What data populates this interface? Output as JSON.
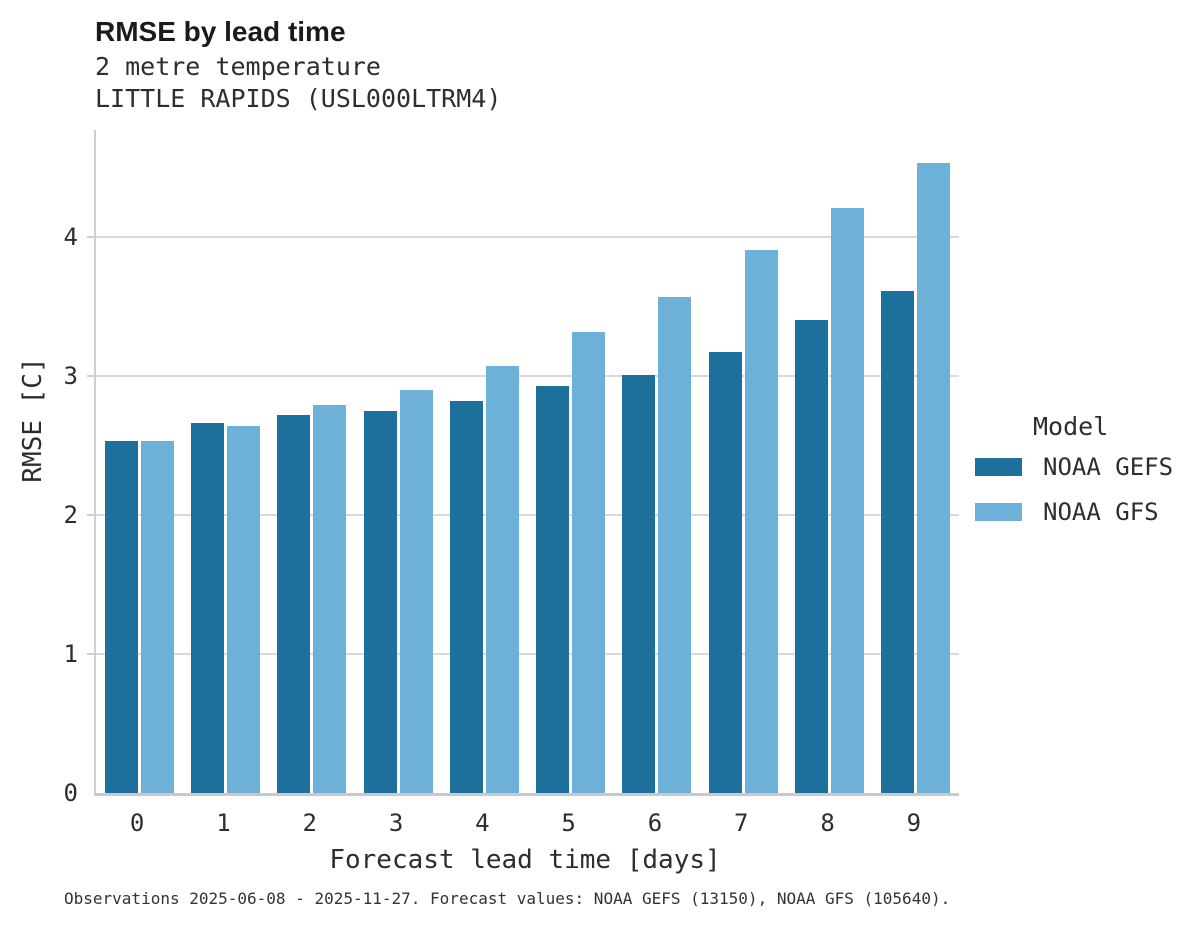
{
  "chart_data": {
    "type": "bar",
    "title": "RMSE by lead time",
    "subtitle_lines": [
      "2 metre temperature",
      "LITTLE RAPIDS (USL000LTRM4)"
    ],
    "xlabel": "Forecast lead time [days]",
    "ylabel": "RMSE [C]",
    "categories": [
      "0",
      "1",
      "2",
      "3",
      "4",
      "5",
      "6",
      "7",
      "8",
      "9"
    ],
    "series": [
      {
        "name": "NOAA GEFS",
        "color": "#1d6f9c",
        "values": [
          2.53,
          2.66,
          2.72,
          2.75,
          2.82,
          2.93,
          3.01,
          3.17,
          3.4,
          3.61
        ]
      },
      {
        "name": "NOAA GFS",
        "color": "#6db1d8",
        "values": [
          2.53,
          2.64,
          2.79,
          2.9,
          3.07,
          3.32,
          3.57,
          3.91,
          4.21,
          4.53
        ]
      }
    ],
    "ylim": [
      0,
      4.77
    ],
    "yticks": [
      0,
      1,
      2,
      3,
      4
    ],
    "grid": "horizontal",
    "legend_title": "Model",
    "legend_position": "right",
    "axis_color": "#cfcfcf",
    "grid_color": "#d9d9d9"
  },
  "caption": "Observations 2025-06-08 - 2025-11-27. Forecast values: NOAA GEFS (13150), NOAA GFS (105640)."
}
